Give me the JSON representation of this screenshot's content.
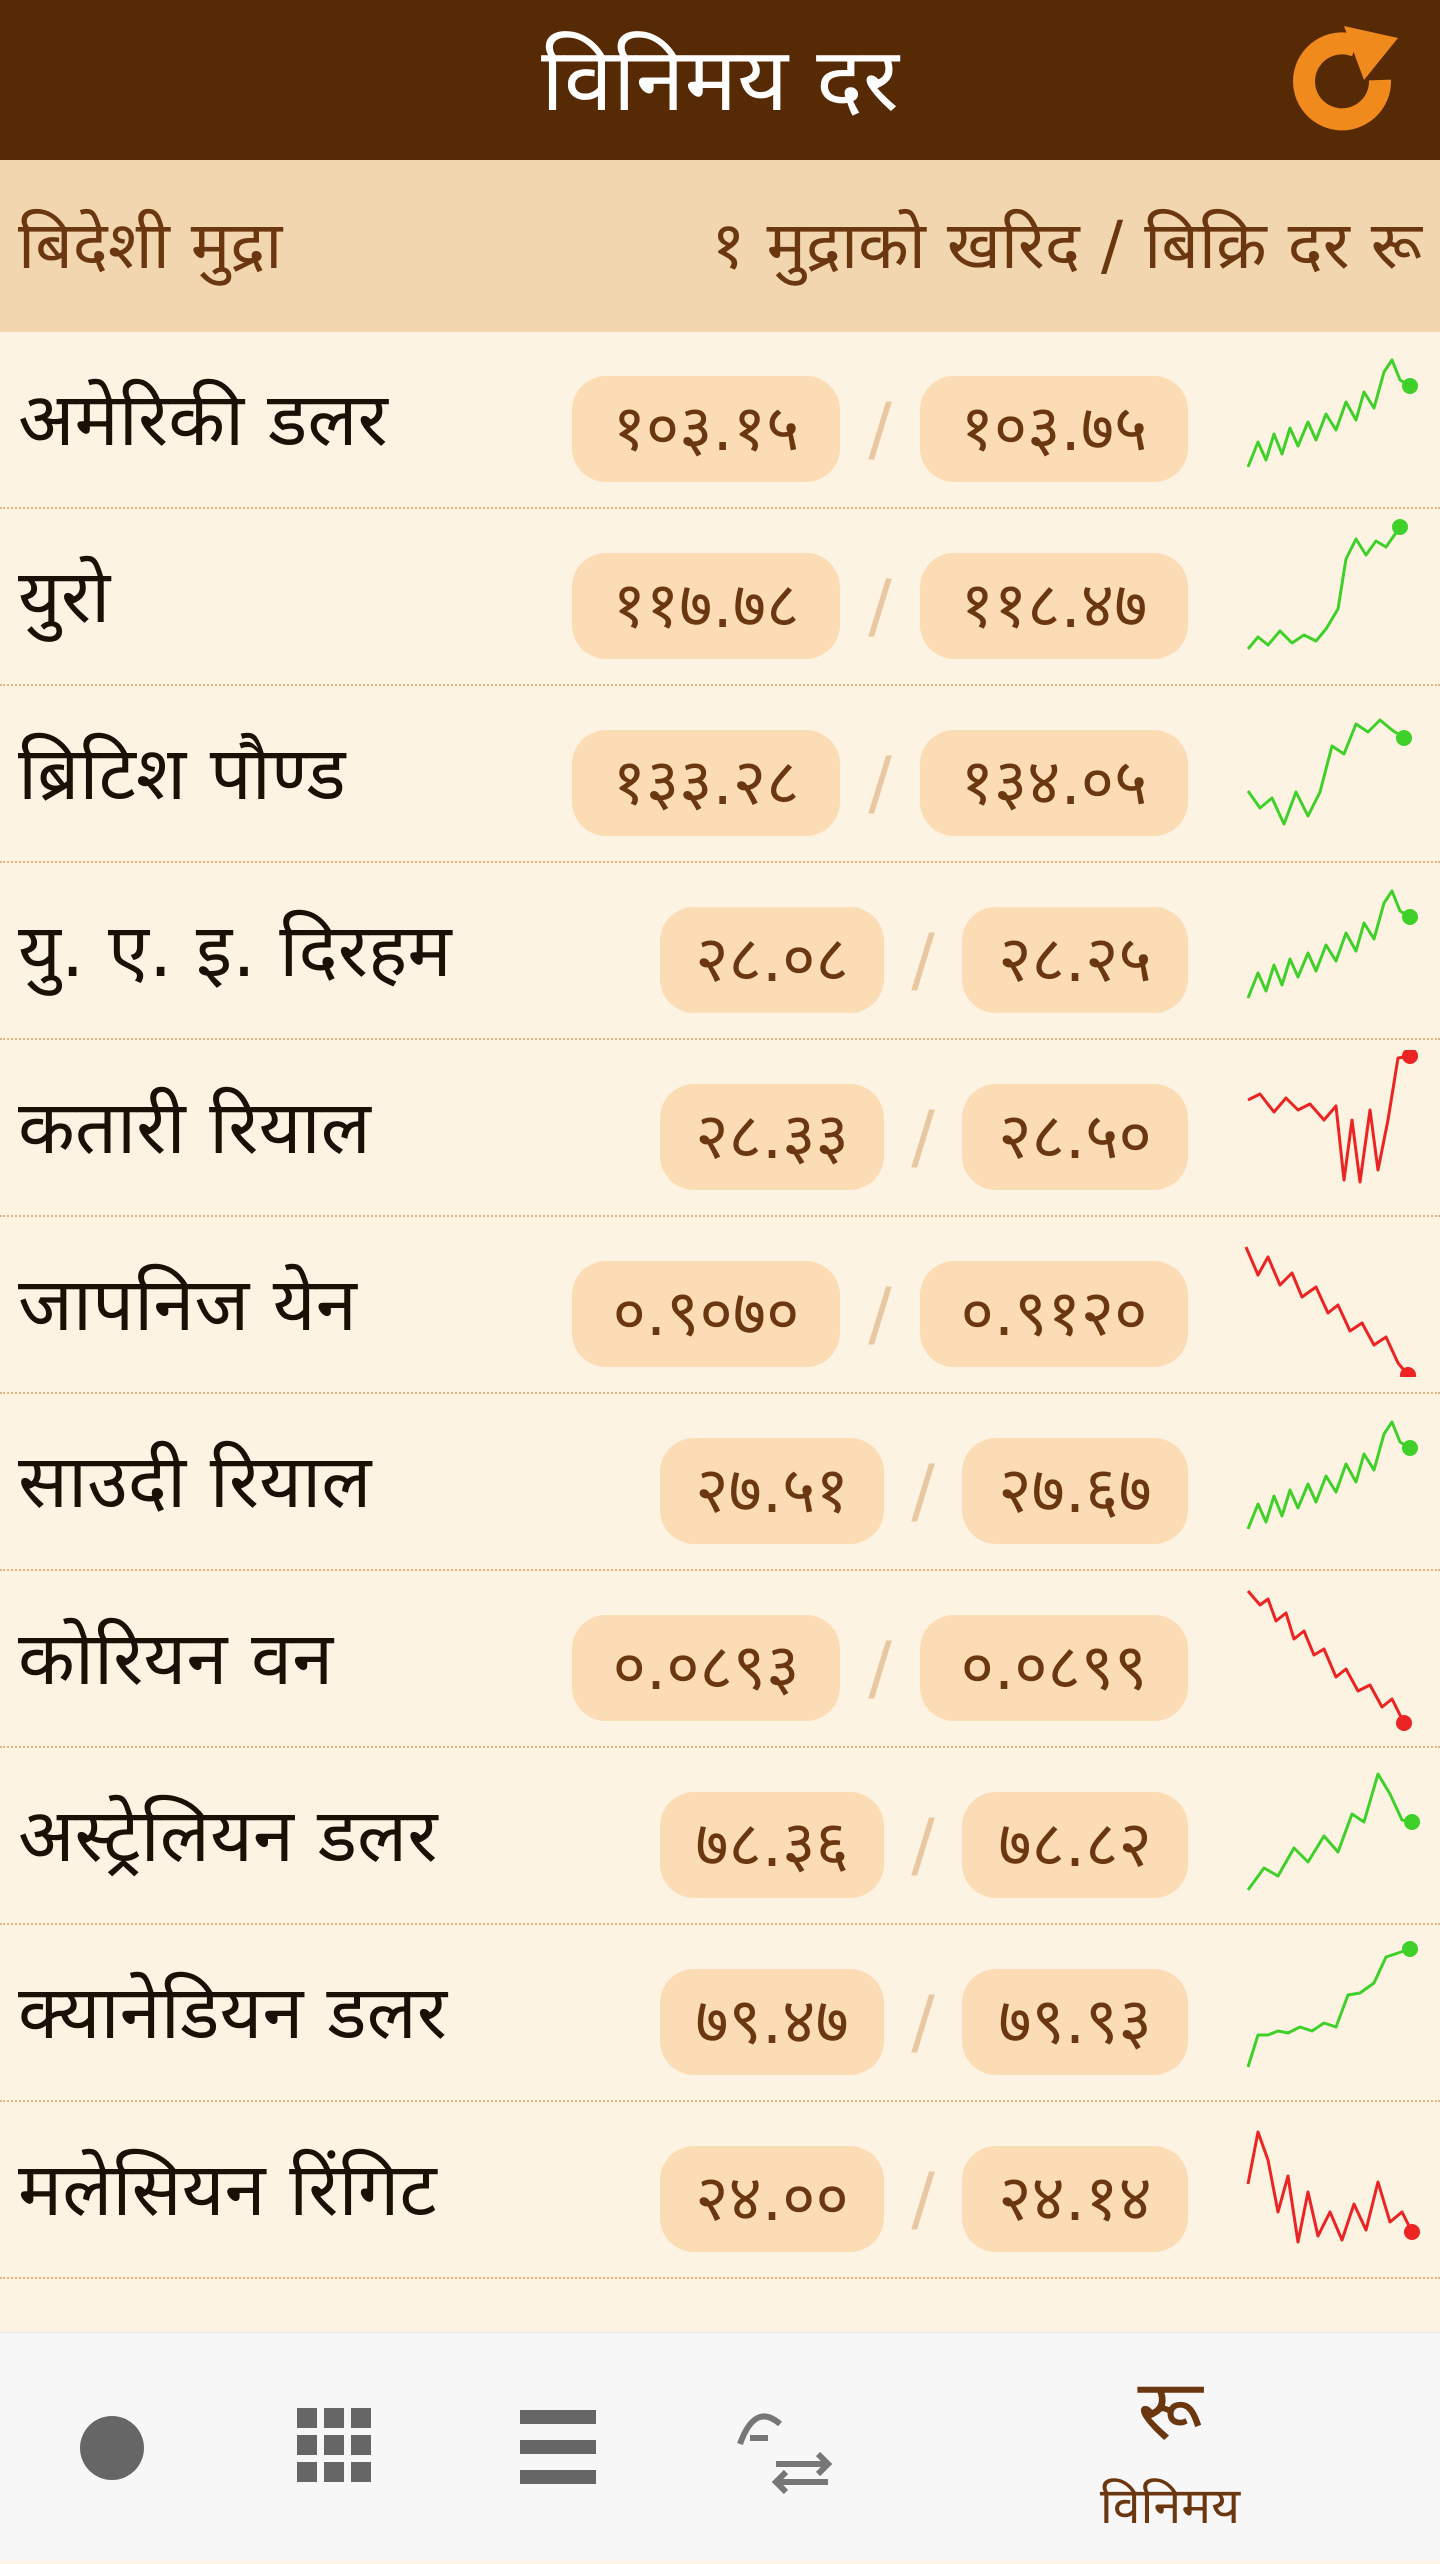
{
  "header": {
    "title": "विनिमय दर",
    "refresh_icon": "refresh-icon"
  },
  "columns": {
    "left": "बिदेशी मुद्रा",
    "right": "१ मुद्राको खरिद / बिक्रि दर रू"
  },
  "rates": [
    {
      "name": "अमेरिकी डलर",
      "buy": "१०३.१५",
      "sell": "१०३.७५",
      "trend": "up"
    },
    {
      "name": "युरो",
      "buy": "११७.७८",
      "sell": "११८.४७",
      "trend": "up"
    },
    {
      "name": "ब्रिटिश पौण्ड",
      "buy": "१३३.२८",
      "sell": "१३४.०५",
      "trend": "up"
    },
    {
      "name": "यु. ए. इ. दिरहम",
      "buy": "२८.०८",
      "sell": "२८.२५",
      "trend": "up"
    },
    {
      "name": "कतारी रियाल",
      "buy": "२८.३३",
      "sell": "२८.५०",
      "trend": "down"
    },
    {
      "name": "जापनिज येन",
      "buy": "०.९०७०",
      "sell": "०.९१२०",
      "trend": "down"
    },
    {
      "name": "साउदी रियाल",
      "buy": "२७.५१",
      "sell": "२७.६७",
      "trend": "up"
    },
    {
      "name": "कोरियन वन",
      "buy": "०.०८९३",
      "sell": "०.०८९९",
      "trend": "down"
    },
    {
      "name": "अस्ट्रेलियन डलर",
      "buy": "७८.३६",
      "sell": "७८.८२",
      "trend": "up"
    },
    {
      "name": "क्यानेडियन डलर",
      "buy": "७९.४७",
      "sell": "७९.९३",
      "trend": "up"
    },
    {
      "name": "मलेसियन रिंगिट",
      "buy": "२४.००",
      "sell": "२४.१४",
      "trend": "down"
    }
  ],
  "separator": "/",
  "colors": {
    "app_bar": "#552a05",
    "header_band": "#f2d6b0",
    "row_bg": "#fdf3e3",
    "pill": "#fbdcb5",
    "text_brown": "#6b3710",
    "trend_up": "#3fd02a",
    "trend_down": "#ec2424",
    "refresh": "#f08a1c"
  },
  "bottom_nav": {
    "items": [
      {
        "icon": "circle-icon"
      },
      {
        "icon": "grid-icon"
      },
      {
        "icon": "list-icon"
      },
      {
        "icon": "zodiac-convert-icon"
      },
      {
        "icon": "rupee-icon",
        "label": "विनिमय",
        "selected": true
      }
    ],
    "rupee_glyph": "रू"
  }
}
